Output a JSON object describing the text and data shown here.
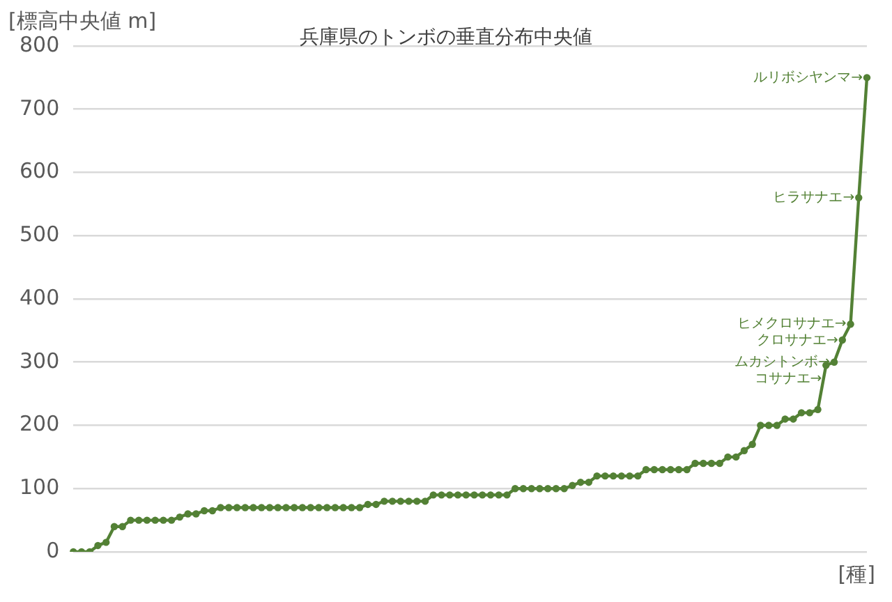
{
  "chart_data": {
    "type": "line",
    "title": "兵庫県のトンボの垂直分布中央値",
    "ylabel": "[標高中央値 m]",
    "xlabel": "[種]",
    "categories": [
      null,
      null,
      null,
      null,
      null,
      null,
      null,
      null,
      null,
      null,
      null,
      null,
      null,
      null,
      null,
      null,
      null,
      null,
      null,
      null,
      null,
      null,
      null,
      null,
      null,
      null,
      null,
      null,
      null,
      null,
      null,
      null,
      null,
      null,
      null,
      null,
      null,
      null,
      null,
      null,
      null,
      null,
      null,
      null,
      null,
      null,
      null,
      null,
      null,
      null,
      null,
      null,
      null,
      null,
      null,
      null,
      null,
      null,
      null,
      null,
      null,
      null,
      null,
      null,
      null,
      null,
      null,
      null,
      null,
      null,
      null,
      null,
      null,
      null,
      null,
      null,
      null,
      null,
      null,
      null,
      null,
      null,
      null,
      null,
      null,
      null,
      null,
      null,
      null,
      null,
      null,
      null,
      null,
      null,
      null,
      null,
      null,
      null
    ],
    "series": [
      {
        "color": "#538135",
        "values": [
          0,
          0,
          0,
          10,
          15,
          40,
          40,
          50,
          50,
          50,
          50,
          50,
          50,
          55,
          60,
          60,
          65,
          65,
          70,
          70,
          70,
          70,
          70,
          70,
          70,
          70,
          70,
          70,
          70,
          70,
          70,
          70,
          70,
          70,
          70,
          70,
          75,
          75,
          80,
          80,
          80,
          80,
          80,
          80,
          90,
          90,
          90,
          90,
          90,
          90,
          90,
          90,
          90,
          90,
          100,
          100,
          100,
          100,
          100,
          100,
          100,
          105,
          110,
          110,
          120,
          120,
          120,
          120,
          120,
          120,
          130,
          130,
          130,
          130,
          130,
          130,
          140,
          140,
          140,
          140,
          150,
          150,
          160,
          170,
          200,
          200,
          200,
          210,
          210,
          220,
          220,
          225,
          295,
          300,
          335,
          360,
          560,
          750
        ]
      }
    ],
    "ylim": [
      0,
      800
    ],
    "yticks": [
      0,
      100,
      200,
      300,
      400,
      500,
      600,
      700,
      800
    ],
    "grid": "y",
    "legend": false,
    "marker": "circle",
    "line_style": "solid",
    "annotations": [
      "ルリボシヤンマ→",
      "ヒラサナエ→",
      "ヒメクロサナエ→",
      "クロサナエ→",
      "ムカシトンボ→",
      "コサナエ→"
    ]
  }
}
